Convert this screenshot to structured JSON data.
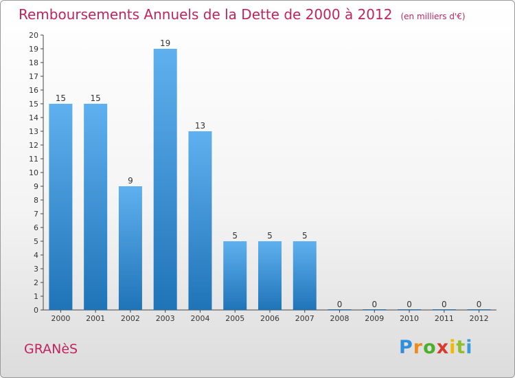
{
  "header": {
    "title": "Remboursements Annuels de la Dette de 2000 à 2012",
    "unit": "(en milliers d'€)"
  },
  "footer": {
    "commune": "GRANèS",
    "logo_letters": [
      {
        "char": "P",
        "color": "#2f8fd8"
      },
      {
        "char": "r",
        "color": "#f08a1c"
      },
      {
        "char": "o",
        "color": "#4caf2a"
      },
      {
        "char": "x",
        "color": "#d93a2b"
      },
      {
        "char": "i",
        "color": "#f2b800"
      },
      {
        "char": "t",
        "color": "#8fbf2f"
      },
      {
        "char": "i",
        "color": "#3a9bd9"
      }
    ]
  },
  "chart_data": {
    "type": "bar",
    "title": "Remboursements Annuels de la Dette de 2000 à 2012",
    "categories": [
      "2000",
      "2001",
      "2002",
      "2003",
      "2004",
      "2005",
      "2006",
      "2007",
      "2008",
      "2009",
      "2010",
      "2011",
      "2012"
    ],
    "values": [
      15,
      15,
      9,
      19,
      13,
      5,
      5,
      5,
      0,
      0,
      0,
      0,
      0
    ],
    "ylim": [
      0,
      20
    ],
    "yticks": [
      0,
      1,
      2,
      3,
      4,
      5,
      6,
      7,
      8,
      9,
      10,
      11,
      12,
      13,
      14,
      15,
      16,
      17,
      18,
      19,
      20
    ],
    "grid": false,
    "bar_color_top": "#5fb0ee",
    "bar_color_bottom": "#1f74b8"
  }
}
